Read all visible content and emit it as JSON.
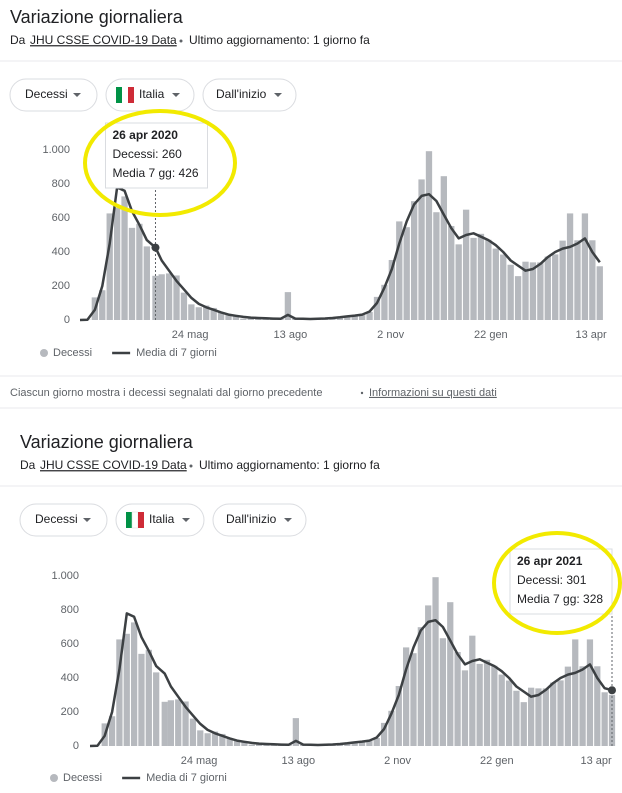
{
  "panels": [
    {
      "title": "Variazione giornaliera",
      "source_prefix": "Da",
      "source_link": "JHU CSSE COVID-19 Data",
      "updated": "Ultimo aggiornamento: 1 giorno fa",
      "buttons": [
        "Decessi",
        "Italia",
        "Dall'inizio"
      ],
      "note": "Ciascun giorno mostra i decessi segnalati dal giorno precedente",
      "note_link": "Informazioni su questi dati"
    },
    {
      "title": "Variazione giornaliera",
      "source_prefix": "Da",
      "source_link": "JHU CSSE COVID-19 Data",
      "updated": "Ultimo aggiornamento: 1 giorno fa",
      "buttons": [
        "Decessi",
        "Italia",
        "Dall'inizio"
      ]
    }
  ],
  "chart_data": [
    {
      "type": "combo",
      "x": [
        0,
        6,
        12,
        18,
        24,
        30,
        36,
        42,
        48,
        54,
        61,
        66,
        72,
        78,
        84,
        90,
        96,
        102,
        108,
        114,
        120,
        126,
        132,
        138,
        144,
        150,
        156,
        162,
        168,
        174,
        180,
        186,
        192,
        198,
        204,
        210,
        216,
        222,
        228,
        234,
        240,
        246,
        252,
        258,
        264,
        270,
        276,
        282,
        288,
        294,
        300,
        306,
        312,
        318,
        324,
        330,
        336,
        342,
        348,
        354,
        360,
        366,
        372,
        378,
        384,
        390,
        396,
        402,
        408,
        414,
        420
      ],
      "xlim": [
        0,
        421
      ],
      "xticks": [
        {
          "value": 89,
          "label": "24 mag"
        },
        {
          "value": 170,
          "label": "13 ago"
        },
        {
          "value": 251,
          "label": "2 nov"
        },
        {
          "value": 332,
          "label": "22 gen"
        },
        {
          "value": 413,
          "label": "13 apr"
        }
      ],
      "ylim": [
        0,
        1000
      ],
      "yticks": [
        0,
        200,
        400,
        600,
        800,
        {
          "value": 1000,
          "label": "1.000"
        }
      ],
      "series": [
        {
          "name": "Decessi",
          "type": "bar",
          "color": "#b6b9be",
          "values": [
            0,
            2,
            133,
            175,
            627,
            660,
            727,
            542,
            566,
            433,
            260,
            269,
            274,
            262,
            161,
            92,
            75,
            85,
            71,
            47,
            30,
            23,
            8,
            11,
            13,
            5,
            6,
            10,
            164,
            7,
            7,
            4,
            6,
            10,
            14,
            19,
            24,
            28,
            29,
            47,
            136,
            207,
            353,
            580,
            546,
            699,
            827,
            993,
            634,
            846,
            553,
            445,
            649,
            483,
            507,
            472,
            420,
            385,
            325,
            258,
            343,
            339,
            339,
            373,
            386,
            467,
            627,
            469,
            627,
            469,
            316
          ]
        },
        {
          "name": "Media di 7 giorni",
          "type": "line",
          "color": "#3c4043",
          "values": [
            0,
            1,
            60,
            200,
            450,
            780,
            760,
            640,
            560,
            470,
            426,
            350,
            290,
            230,
            180,
            130,
            95,
            75,
            60,
            45,
            32,
            25,
            18,
            14,
            12,
            10,
            8,
            7,
            30,
            8,
            7,
            6,
            7,
            9,
            12,
            16,
            21,
            26,
            32,
            50,
            100,
            190,
            300,
            450,
            580,
            680,
            730,
            740,
            700,
            620,
            540,
            480,
            500,
            510,
            490,
            470,
            440,
            400,
            350,
            320,
            290,
            300,
            330,
            370,
            400,
            420,
            430,
            450,
            480,
            400,
            340
          ]
        }
      ],
      "tooltip": {
        "date": "26 apr 2020",
        "daily": 260,
        "daily_label": "Decessi: 260",
        "avg": 426,
        "avg_label": "Media 7 gg: 426"
      }
    },
    {
      "type": "combo",
      "x": [
        0,
        6,
        12,
        18,
        24,
        30,
        36,
        42,
        48,
        54,
        61,
        66,
        72,
        78,
        84,
        90,
        96,
        102,
        108,
        114,
        120,
        126,
        132,
        138,
        144,
        150,
        156,
        162,
        168,
        174,
        180,
        186,
        192,
        198,
        204,
        210,
        216,
        222,
        228,
        234,
        240,
        246,
        252,
        258,
        264,
        270,
        276,
        282,
        288,
        294,
        300,
        306,
        312,
        318,
        324,
        330,
        336,
        342,
        348,
        354,
        360,
        366,
        372,
        378,
        384,
        390,
        396,
        402,
        408,
        414,
        420,
        426
      ],
      "xlim": [
        0,
        426
      ],
      "xticks": [
        {
          "value": 89,
          "label": "24 mag"
        },
        {
          "value": 170,
          "label": "13 ago"
        },
        {
          "value": 251,
          "label": "2 nov"
        },
        {
          "value": 332,
          "label": "22 gen"
        },
        {
          "value": 413,
          "label": "13 apr"
        }
      ],
      "ylim": [
        0,
        1000
      ],
      "yticks": [
        0,
        200,
        400,
        600,
        800,
        {
          "value": 1000,
          "label": "1.000"
        }
      ],
      "series": [
        {
          "name": "Decessi",
          "type": "bar",
          "color": "#b6b9be",
          "values": [
            0,
            2,
            133,
            175,
            627,
            660,
            727,
            542,
            566,
            433,
            260,
            269,
            274,
            262,
            161,
            92,
            75,
            85,
            71,
            47,
            30,
            23,
            8,
            11,
            13,
            5,
            6,
            10,
            164,
            7,
            7,
            4,
            6,
            10,
            14,
            19,
            24,
            28,
            29,
            47,
            136,
            207,
            353,
            580,
            546,
            699,
            827,
            993,
            634,
            846,
            553,
            445,
            649,
            483,
            507,
            472,
            420,
            385,
            325,
            258,
            343,
            339,
            339,
            373,
            386,
            467,
            627,
            469,
            627,
            469,
            316,
            301
          ]
        },
        {
          "name": "Media di 7 giorni",
          "type": "line",
          "color": "#3c4043",
          "values": [
            0,
            1,
            60,
            200,
            450,
            780,
            760,
            640,
            560,
            470,
            426,
            350,
            290,
            230,
            180,
            130,
            95,
            75,
            60,
            45,
            32,
            25,
            18,
            14,
            12,
            10,
            8,
            7,
            30,
            8,
            7,
            6,
            7,
            9,
            12,
            16,
            21,
            26,
            32,
            50,
            100,
            190,
            300,
            450,
            580,
            680,
            730,
            740,
            700,
            620,
            540,
            480,
            500,
            510,
            490,
            470,
            440,
            400,
            350,
            320,
            290,
            300,
            330,
            370,
            400,
            420,
            430,
            450,
            480,
            400,
            340,
            328
          ]
        }
      ],
      "tooltip": {
        "date": "26 apr 2021",
        "daily": 301,
        "daily_label": "Decessi: 301",
        "avg": 328,
        "avg_label": "Media 7 gg: 328"
      }
    }
  ]
}
